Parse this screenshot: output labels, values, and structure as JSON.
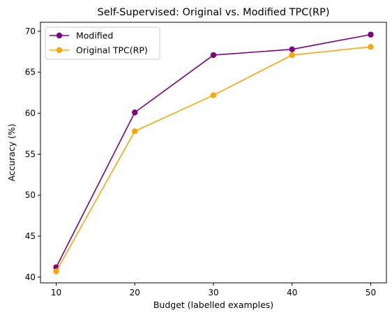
{
  "chart_data": {
    "type": "line",
    "title": "Self-Supervised: Original vs. Modified TPC(RP)",
    "xlabel": "Budget (labelled examples)",
    "ylabel": "Accuracy (%)",
    "x": [
      10,
      20,
      30,
      40,
      50
    ],
    "xticks": [
      10,
      20,
      30,
      40,
      50
    ],
    "yticks": [
      40,
      45,
      50,
      55,
      60,
      65,
      70
    ],
    "xlim": [
      8,
      52
    ],
    "ylim": [
      39.3,
      71.1
    ],
    "grid": false,
    "legend": "top-left",
    "series": [
      {
        "name": "Modified",
        "color": "#800080",
        "values": [
          41.2,
          60.1,
          67.1,
          67.8,
          69.6
        ]
      },
      {
        "name": "Original TPC(RP)",
        "color": "#FFA500",
        "values": [
          40.7,
          57.8,
          62.2,
          67.1,
          68.1
        ]
      }
    ]
  }
}
